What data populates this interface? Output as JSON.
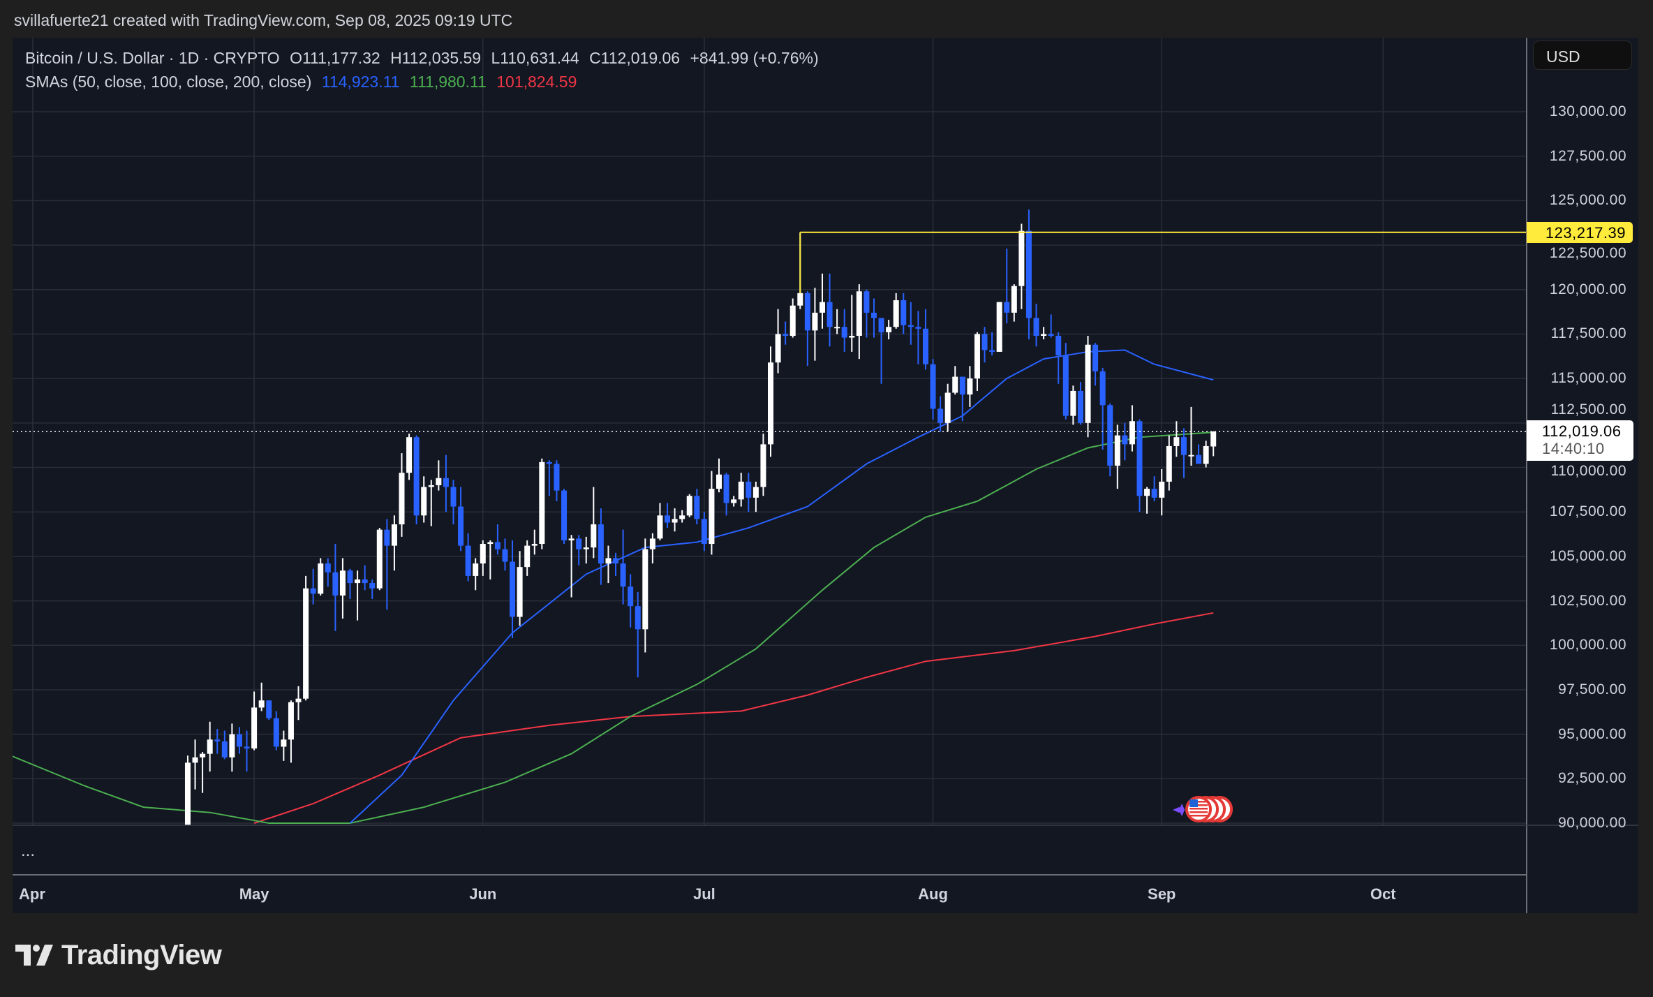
{
  "header": {
    "attribution": "svillafuerte21 created with TradingView.com, Sep 08, 2025 09:19 UTC"
  },
  "symbol": {
    "name": "Bitcoin / U.S. Dollar · 1D · CRYPTO",
    "open": "O111,177.32",
    "high": "H112,035.59",
    "low": "L110,631.44",
    "close": "C112,019.06",
    "change": "+841.99 (+0.76%)"
  },
  "indicator": {
    "label": "SMAs (50, close, 100, close, 200, close)",
    "sma50": "114,923.11",
    "sma100": "111,980.11",
    "sma200": "101,824.59"
  },
  "price_axis": {
    "currency_button": "USD",
    "ticks": [
      "130,000.00",
      "127,500.00",
      "125,000.00",
      "122,500.00",
      "120,000.00",
      "117,500.00",
      "115,000.00",
      "112,500.00",
      "110,000.00",
      "107,500.00",
      "105,000.00",
      "102,500.00",
      "100,000.00",
      "97,500.00",
      "95,000.00",
      "92,500.00",
      "90,000.00"
    ],
    "level_label": "123,217.39",
    "current_price": "112,019.06",
    "countdown": "14:40:10"
  },
  "time_axis": {
    "months": [
      "Apr",
      "May",
      "Jun",
      "Jul",
      "Aug",
      "Sep",
      "Oct"
    ]
  },
  "lower_pane": {
    "more": "..."
  },
  "logo": {
    "text": "TradingView"
  },
  "colors": {
    "bull": "#ffffff",
    "bear": "#2962ff",
    "sma50": "#2962ff",
    "sma100": "#4caf50",
    "sma200": "#f23645",
    "level": "#ffeb3b",
    "grid": "#2a2e39",
    "background": "#131722"
  },
  "chart_data": {
    "type": "candlestick",
    "ylim": [
      90000,
      130000
    ],
    "x_range": [
      "2025-04-01",
      "2025-10-05"
    ],
    "grid": true,
    "first_candle_date": "2025-04-22",
    "ohlc": [
      [
        87500,
        93800,
        87500,
        93400
      ],
      [
        93400,
        94700,
        91900,
        93700
      ],
      [
        93700,
        94000,
        91700,
        93900
      ],
      [
        93900,
        95700,
        92900,
        94700
      ],
      [
        94700,
        95300,
        93900,
        94600
      ],
      [
        94600,
        95200,
        93600,
        93700
      ],
      [
        93700,
        95600,
        92900,
        95000
      ],
      [
        95000,
        95400,
        93900,
        94300
      ],
      [
        94300,
        95200,
        92900,
        94200
      ],
      [
        94200,
        97400,
        94100,
        96500
      ],
      [
        96500,
        97900,
        96300,
        96900
      ],
      [
        96900,
        96900,
        95800,
        95900
      ],
      [
        95900,
        96300,
        94100,
        94300
      ],
      [
        94300,
        95200,
        93500,
        94700
      ],
      [
        94700,
        96900,
        93400,
        96800
      ],
      [
        96800,
        97700,
        95800,
        97000
      ],
      [
        97000,
        103900,
        96900,
        103200
      ],
      [
        103200,
        104300,
        102300,
        102900
      ],
      [
        102900,
        104900,
        102800,
        104600
      ],
      [
        104600,
        104900,
        103300,
        104100
      ],
      [
        104100,
        105700,
        100800,
        102800
      ],
      [
        102800,
        104900,
        101500,
        104200
      ],
      [
        104200,
        104300,
        102600,
        103500
      ],
      [
        103500,
        104200,
        101400,
        103700
      ],
      [
        103700,
        104500,
        103100,
        103500
      ],
      [
        103500,
        103700,
        102600,
        103200
      ],
      [
        103200,
        106600,
        103100,
        106500
      ],
      [
        106500,
        107100,
        102000,
        105600
      ],
      [
        105600,
        107300,
        104200,
        106800
      ],
      [
        106800,
        110800,
        106100,
        109700
      ],
      [
        109700,
        111900,
        109300,
        111700
      ],
      [
        111700,
        111800,
        106800,
        107300
      ],
      [
        107300,
        109500,
        106900,
        108900
      ],
      [
        108900,
        109300,
        106700,
        109000
      ],
      [
        109000,
        110400,
        108700,
        109400
      ],
      [
        109400,
        110700,
        107500,
        108900
      ],
      [
        108900,
        109300,
        106800,
        107800
      ],
      [
        107800,
        108900,
        105300,
        105600
      ],
      [
        105600,
        106300,
        103600,
        103900
      ],
      [
        103900,
        104900,
        103100,
        104600
      ],
      [
        104600,
        105900,
        103900,
        105700
      ],
      [
        105700,
        105900,
        103700,
        105800
      ],
      [
        105800,
        106800,
        105100,
        105400
      ],
      [
        105400,
        106000,
        104200,
        104700
      ],
      [
        104700,
        105900,
        100400,
        101600
      ],
      [
        101600,
        105300,
        101100,
        104400
      ],
      [
        104400,
        105900,
        103900,
        105600
      ],
      [
        105600,
        106500,
        105100,
        105700
      ],
      [
        105700,
        110500,
        105400,
        110300
      ],
      [
        110300,
        110400,
        108400,
        110200
      ],
      [
        110200,
        110400,
        108100,
        108700
      ],
      [
        108700,
        108800,
        105700,
        105900
      ],
      [
        105900,
        106200,
        102700,
        106000
      ],
      [
        106000,
        106200,
        104500,
        105400
      ],
      [
        105400,
        106100,
        104600,
        105500
      ],
      [
        105500,
        108900,
        104900,
        106800
      ],
      [
        106800,
        107700,
        103400,
        104600
      ],
      [
        104600,
        105600,
        103500,
        104900
      ],
      [
        104900,
        105200,
        103900,
        104600
      ],
      [
        104600,
        106500,
        102300,
        103300
      ],
      [
        103300,
        104000,
        101000,
        102200
      ],
      [
        102200,
        103000,
        98200,
        100900
      ],
      [
        100900,
        106000,
        99600,
        105400
      ],
      [
        105400,
        106300,
        104600,
        106000
      ],
      [
        106000,
        108000,
        105900,
        107300
      ],
      [
        107300,
        108000,
        106600,
        106900
      ],
      [
        106900,
        107700,
        106400,
        107100
      ],
      [
        107100,
        107600,
        106900,
        107300
      ],
      [
        107300,
        108500,
        107200,
        108400
      ],
      [
        108400,
        108800,
        106800,
        107100
      ],
      [
        107100,
        107500,
        105300,
        105700
      ],
      [
        105700,
        109800,
        105100,
        108800
      ],
      [
        108800,
        110500,
        108600,
        109600
      ],
      [
        109600,
        109700,
        107300,
        108000
      ],
      [
        108000,
        108400,
        107800,
        108200
      ],
      [
        108200,
        109700,
        107800,
        109200
      ],
      [
        109200,
        109700,
        107500,
        108300
      ],
      [
        108300,
        109200,
        107500,
        108900
      ],
      [
        108900,
        111900,
        108400,
        111300
      ],
      [
        111300,
        116800,
        110600,
        115900
      ],
      [
        115900,
        118900,
        115300,
        117500
      ],
      [
        117500,
        118200,
        116900,
        117400
      ],
      [
        117400,
        119500,
        117300,
        119100
      ],
      [
        119100,
        123217.39,
        118900,
        119800
      ],
      [
        119800,
        119900,
        115700,
        117700
      ],
      [
        117700,
        120100,
        116000,
        118700
      ],
      [
        118700,
        120900,
        117800,
        119300
      ],
      [
        119300,
        120900,
        116800,
        117900
      ],
      [
        117900,
        118900,
        117500,
        117900
      ],
      [
        117900,
        118900,
        116500,
        117300
      ],
      [
        117300,
        119700,
        116500,
        117400
      ],
      [
        117400,
        120300,
        116100,
        119900
      ],
      [
        119900,
        120000,
        117300,
        118700
      ],
      [
        118700,
        119500,
        117300,
        118400
      ],
      [
        118400,
        118400,
        114700,
        117600
      ],
      [
        117600,
        118300,
        117200,
        117900
      ],
      [
        117900,
        119800,
        117800,
        119400
      ],
      [
        119400,
        119800,
        117500,
        118000
      ],
      [
        118000,
        119300,
        116900,
        117900
      ],
      [
        117900,
        118800,
        115800,
        117800
      ],
      [
        117800,
        118900,
        115500,
        115800
      ],
      [
        115800,
        116100,
        112700,
        113300
      ],
      [
        113300,
        114000,
        112000,
        112500
      ],
      [
        112500,
        114700,
        112000,
        114200
      ],
      [
        114200,
        115700,
        114100,
        115100
      ],
      [
        115100,
        115100,
        112600,
        114100
      ],
      [
        114100,
        115700,
        113400,
        115000
      ],
      [
        115000,
        117600,
        114300,
        117500
      ],
      [
        117500,
        117900,
        115900,
        116600
      ],
      [
        116600,
        117600,
        116300,
        116500
      ],
      [
        116500,
        119300,
        116500,
        119300
      ],
      [
        119300,
        122300,
        118100,
        118700
      ],
      [
        118700,
        120300,
        118200,
        120200
      ],
      [
        120200,
        123700,
        118900,
        123300
      ],
      [
        123300,
        124500,
        117200,
        118400
      ],
      [
        118400,
        119200,
        116800,
        117400
      ],
      [
        117400,
        117900,
        117200,
        117500
      ],
      [
        117500,
        118600,
        117300,
        117400
      ],
      [
        117400,
        117600,
        114700,
        116300
      ],
      [
        116300,
        117000,
        112700,
        112900
      ],
      [
        112900,
        114600,
        112400,
        114300
      ],
      [
        114300,
        114800,
        112400,
        112500
      ],
      [
        112500,
        117400,
        111700,
        116900
      ],
      [
        116900,
        117000,
        114600,
        115400
      ],
      [
        115400,
        115600,
        111000,
        113500
      ],
      [
        113500,
        113600,
        109500,
        110100
      ],
      [
        110100,
        112400,
        108800,
        111800
      ],
      [
        111800,
        112500,
        110400,
        111300
      ],
      [
        111300,
        113500,
        110900,
        112600
      ],
      [
        112600,
        112700,
        107500,
        108400
      ],
      [
        108400,
        108900,
        107400,
        108800
      ],
      [
        108800,
        109500,
        108100,
        108300
      ],
      [
        108300,
        109900,
        107300,
        109200
      ],
      [
        109200,
        111800,
        108700,
        111200
      ],
      [
        111200,
        112600,
        110600,
        111700
      ],
      [
        111700,
        112200,
        109400,
        110700
      ],
      [
        110700,
        113400,
        110100,
        110700
      ],
      [
        110700,
        111300,
        110200,
        110200
      ],
      [
        110200,
        111500,
        110000,
        111200
      ],
      [
        111177.32,
        112035.59,
        110631.44,
        112019.06
      ]
    ],
    "sma50": [
      [
        "2025-05-14",
        90000
      ],
      [
        "2025-05-21",
        92700
      ],
      [
        "2025-05-28",
        96900
      ],
      [
        "2025-06-05",
        100700
      ],
      [
        "2025-06-15",
        104000
      ],
      [
        "2025-06-23",
        105500
      ],
      [
        "2025-06-30",
        105800
      ],
      [
        "2025-07-07",
        106600
      ],
      [
        "2025-07-15",
        107800
      ],
      [
        "2025-07-23",
        110200
      ],
      [
        "2025-07-30",
        111700
      ],
      [
        "2025-08-05",
        112900
      ],
      [
        "2025-08-11",
        115000
      ],
      [
        "2025-08-16",
        116100
      ],
      [
        "2025-08-22",
        116500
      ],
      [
        "2025-08-27",
        116600
      ],
      [
        "2025-08-31",
        115800
      ],
      [
        "2025-09-08",
        114923.11
      ]
    ],
    "sma100": [
      [
        "2025-03-29",
        93800
      ],
      [
        "2025-04-08",
        92100
      ],
      [
        "2025-04-16",
        90900
      ],
      [
        "2025-04-25",
        90600
      ],
      [
        "2025-05-03",
        90000
      ],
      [
        "2025-05-14",
        90000
      ],
      [
        "2025-05-24",
        90900
      ],
      [
        "2025-06-04",
        92300
      ],
      [
        "2025-06-13",
        93900
      ],
      [
        "2025-06-21",
        96000
      ],
      [
        "2025-06-30",
        97800
      ],
      [
        "2025-07-08",
        99800
      ],
      [
        "2025-07-17",
        103100
      ],
      [
        "2025-07-24",
        105500
      ],
      [
        "2025-07-31",
        107200
      ],
      [
        "2025-08-07",
        108100
      ],
      [
        "2025-08-15",
        109900
      ],
      [
        "2025-08-22",
        111100
      ],
      [
        "2025-08-29",
        111700
      ],
      [
        "2025-09-08",
        111980.11
      ]
    ],
    "sma200": [
      [
        "2025-05-01",
        90000
      ],
      [
        "2025-05-09",
        91100
      ],
      [
        "2025-05-18",
        92700
      ],
      [
        "2025-05-29",
        94800
      ],
      [
        "2025-06-10",
        95500
      ],
      [
        "2025-06-21",
        96000
      ],
      [
        "2025-07-06",
        96300
      ],
      [
        "2025-07-15",
        97200
      ],
      [
        "2025-07-23",
        98200
      ],
      [
        "2025-07-31",
        99100
      ],
      [
        "2025-08-12",
        99700
      ],
      [
        "2025-08-23",
        100500
      ],
      [
        "2025-08-31",
        101200
      ],
      [
        "2025-09-08",
        101824.59
      ]
    ],
    "horizontal_level": {
      "start": "2025-07-14",
      "value": 123217.39
    },
    "current_price": 112019.06,
    "events_date": "2025-09-06"
  }
}
